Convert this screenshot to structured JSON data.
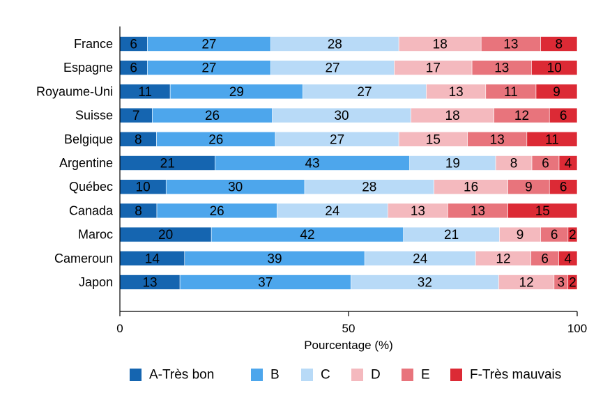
{
  "chart_data": {
    "type": "bar",
    "orientation": "horizontal",
    "stacked": true,
    "title": "",
    "xlabel": "Pourcentage (%)",
    "ylabel": "",
    "xlim": [
      0,
      100
    ],
    "xticks": [
      "0",
      "50",
      "100"
    ],
    "grid": false,
    "legend_position": "bottom",
    "categories": [
      "France",
      "Espagne",
      "Royaume-Uni",
      "Suisse",
      "Belgique",
      "Argentine",
      "Québec",
      "Canada",
      "Maroc",
      "Cameroun",
      "Japon"
    ],
    "series": [
      {
        "name": "A-Très bon",
        "color": "#1565b0",
        "values": [
          6,
          6,
          11,
          7,
          8,
          21,
          10,
          8,
          20,
          14,
          13
        ]
      },
      {
        "name": "B",
        "color": "#4da6ec",
        "values": [
          27,
          27,
          29,
          26,
          26,
          43,
          30,
          26,
          42,
          39,
          37
        ]
      },
      {
        "name": "C",
        "color": "#b8daf7",
        "values": [
          28,
          27,
          27,
          30,
          27,
          19,
          28,
          24,
          21,
          24,
          32
        ]
      },
      {
        "name": "D",
        "color": "#f4b9be",
        "values": [
          18,
          17,
          13,
          18,
          15,
          8,
          16,
          13,
          9,
          12,
          12
        ]
      },
      {
        "name": "E",
        "color": "#e8747c",
        "values": [
          13,
          13,
          11,
          12,
          13,
          6,
          9,
          13,
          6,
          6,
          3
        ]
      },
      {
        "name": "F-Très mauvais",
        "color": "#dc2a35",
        "values": [
          8,
          10,
          9,
          6,
          11,
          4,
          6,
          15,
          2,
          4,
          2
        ]
      }
    ]
  }
}
